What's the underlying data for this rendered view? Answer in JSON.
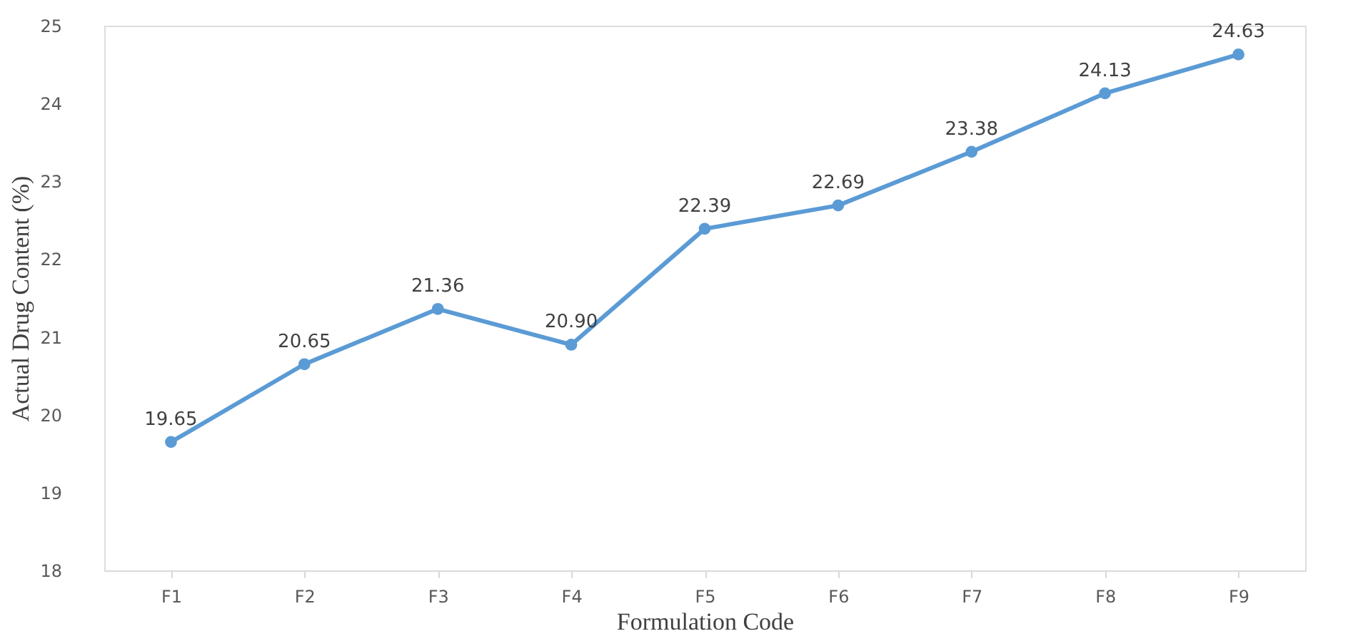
{
  "chart_data": {
    "type": "line",
    "xlabel": "Formulation Code",
    "ylabel": "Actual Drug Content (%)",
    "categories": [
      "F1",
      "F2",
      "F3",
      "F4",
      "F5",
      "F6",
      "F7",
      "F8",
      "F9"
    ],
    "series": [
      {
        "color": "#5b9bd5",
        "values": [
          19.65,
          20.65,
          21.36,
          20.9,
          22.39,
          22.69,
          23.38,
          24.13,
          24.63
        ],
        "value_labels": [
          "19.65",
          "20.65",
          "21.36",
          "20.90",
          "22.39",
          "22.69",
          "23.38",
          "24.13",
          "24.63"
        ]
      }
    ],
    "ylim": [
      18,
      25
    ],
    "yticks": [
      18,
      19,
      20,
      21,
      22,
      23,
      24,
      25
    ],
    "grid": false,
    "marker": "circle",
    "line_style": "solid"
  }
}
